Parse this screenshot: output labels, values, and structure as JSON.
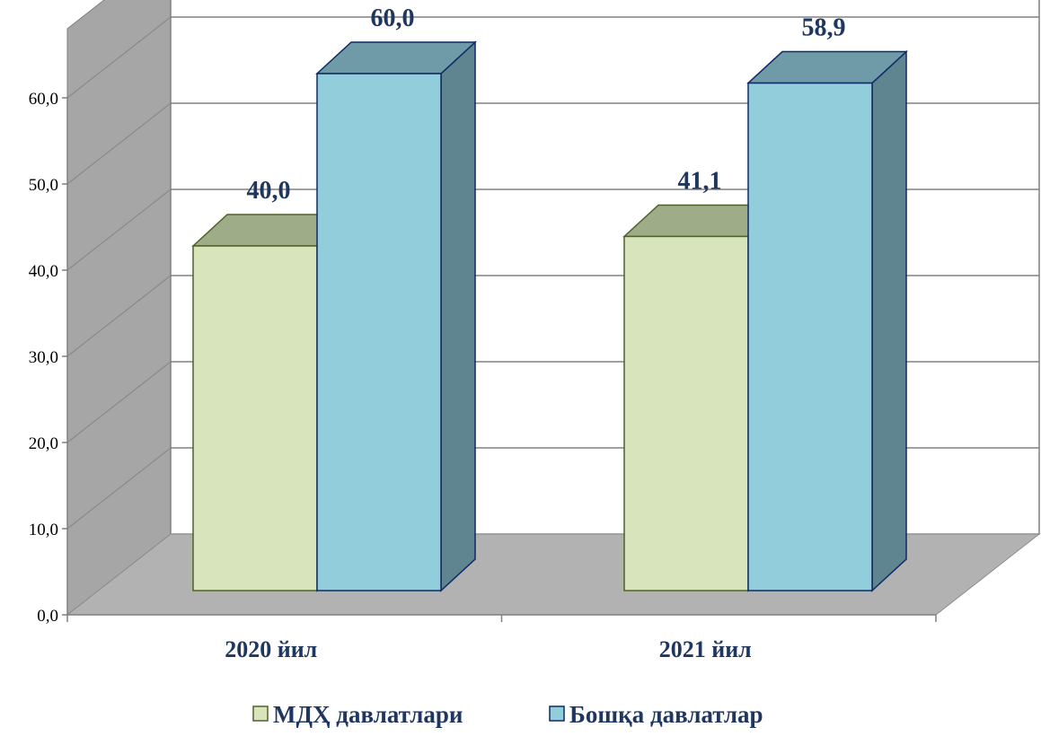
{
  "chart_data": {
    "type": "bar",
    "categories": [
      "2020 йил",
      "2021 йил"
    ],
    "series": [
      {
        "name": "МДҲ давлатлари",
        "values": [
          40.0,
          41.1
        ],
        "labels": [
          "40,0",
          "41,1"
        ]
      },
      {
        "name": "Бошқа давлатлар",
        "values": [
          60.0,
          58.9
        ],
        "labels": [
          "60,0",
          "58,9"
        ]
      }
    ],
    "title": "",
    "xlabel": "",
    "ylabel": "",
    "ylim": [
      0,
      60
    ],
    "yticks": [
      0,
      10,
      20,
      30,
      40,
      50,
      60
    ],
    "ytick_labels": [
      "0,0",
      "10,0",
      "20,0",
      "30,0",
      "40,0",
      "50,0",
      "60,0"
    ],
    "grid": true,
    "legend_position": "bottom",
    "three_d": true,
    "colors": {
      "series": [
        {
          "front": "#d8e4bc",
          "top": "#9ead88",
          "side": "#b3c293",
          "stroke": "#4f6228"
        },
        {
          "front": "#92cddc",
          "top": "#6f9ba8",
          "side": "#5e8590",
          "stroke": "#0f2a66"
        }
      ],
      "wall": "#a6a6a6",
      "floor": "#b2b2b2",
      "grid": "#808080"
    }
  }
}
